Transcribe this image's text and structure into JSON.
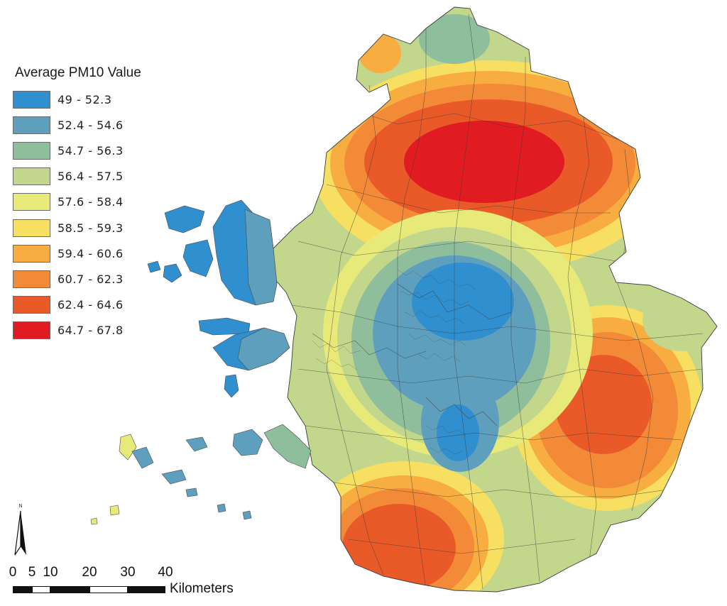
{
  "legend": {
    "title": "Average PM10 Value",
    "classes": [
      {
        "label": "49 - 52.3",
        "color": "#2f8fcf"
      },
      {
        "label": "52.4 - 54.6",
        "color": "#5e9fbe"
      },
      {
        "label": "54.7 - 56.3",
        "color": "#8fbe9d"
      },
      {
        "label": "56.4 - 57.5",
        "color": "#c2d78c"
      },
      {
        "label": "57.6 - 58.4",
        "color": "#e7ea78"
      },
      {
        "label": "58.5 - 59.3",
        "color": "#f7df62"
      },
      {
        "label": "59.4 - 60.6",
        "color": "#f8ad40"
      },
      {
        "label": "60.7 - 62.3",
        "color": "#f28a38"
      },
      {
        "label": "62.4 - 64.6",
        "color": "#ea5a28"
      },
      {
        "label": "64.7 - 67.8",
        "color": "#e01b22"
      }
    ]
  },
  "north_arrow": {
    "label": "N"
  },
  "scale_bar": {
    "ticks": [
      "0",
      "5",
      "10",
      "20",
      "30",
      "40"
    ],
    "units": "Kilometers"
  },
  "colors": {
    "boundary_lines": "#3b3b3b",
    "background": "#ffffff"
  }
}
